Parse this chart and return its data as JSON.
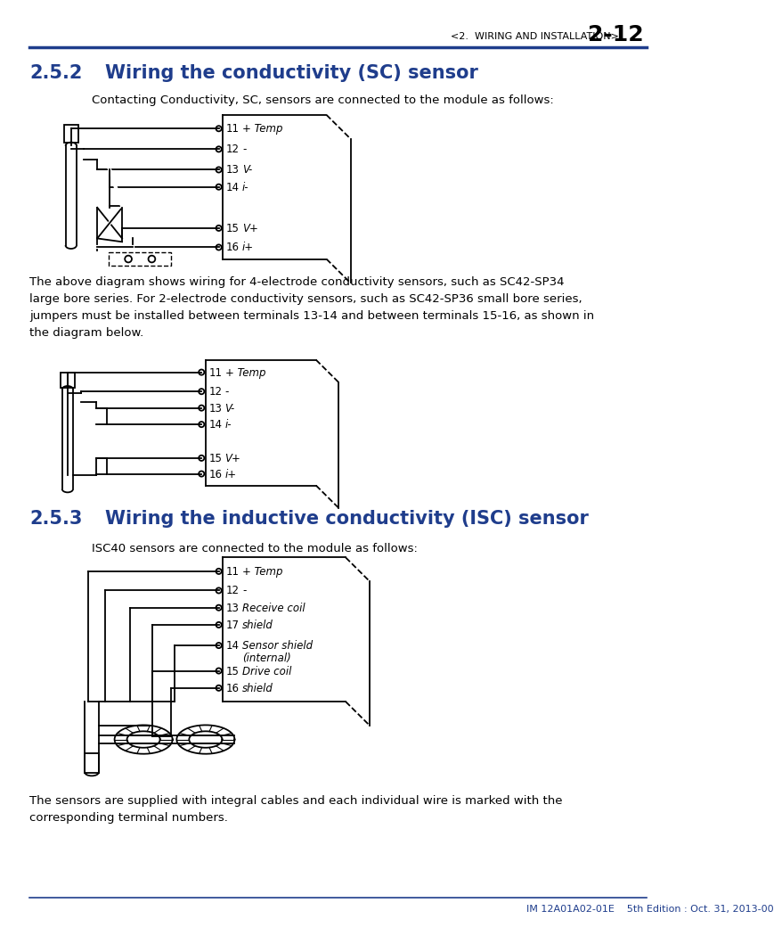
{
  "page_header_text": "<2.  WIRING AND INSTALLATION>",
  "page_number": "2-12",
  "header_color": "#1f3d8c",
  "section1_number": "2.5.2",
  "section1_title": "Wiring the conductivity (SC) sensor",
  "section1_intro": "Contacting Conductivity, SC, sensors are connected to the module as follows:",
  "section1_body": "The above diagram shows wiring for 4-electrode conductivity sensors, such as SC42-SP34\nlarge bore series. For 2-electrode conductivity sensors, such as SC42-SP36 small bore series,\njumpers must be installed between terminals 13-14 and between terminals 15-16, as shown in\nthe diagram below.",
  "section2_number": "2.5.3",
  "section2_title": "Wiring the inductive conductivity (ISC) sensor",
  "section2_intro": "ISC40 sensors are connected to the module as follows:",
  "footer_text": "IM 12A01A02-01E    5th Edition : Oct. 31, 2013-00",
  "footer_color": "#1f3d8c",
  "body_bottom": "The sensors are supplied with integral cables and each individual wire is marked with the\ncorresponding terminal numbers."
}
